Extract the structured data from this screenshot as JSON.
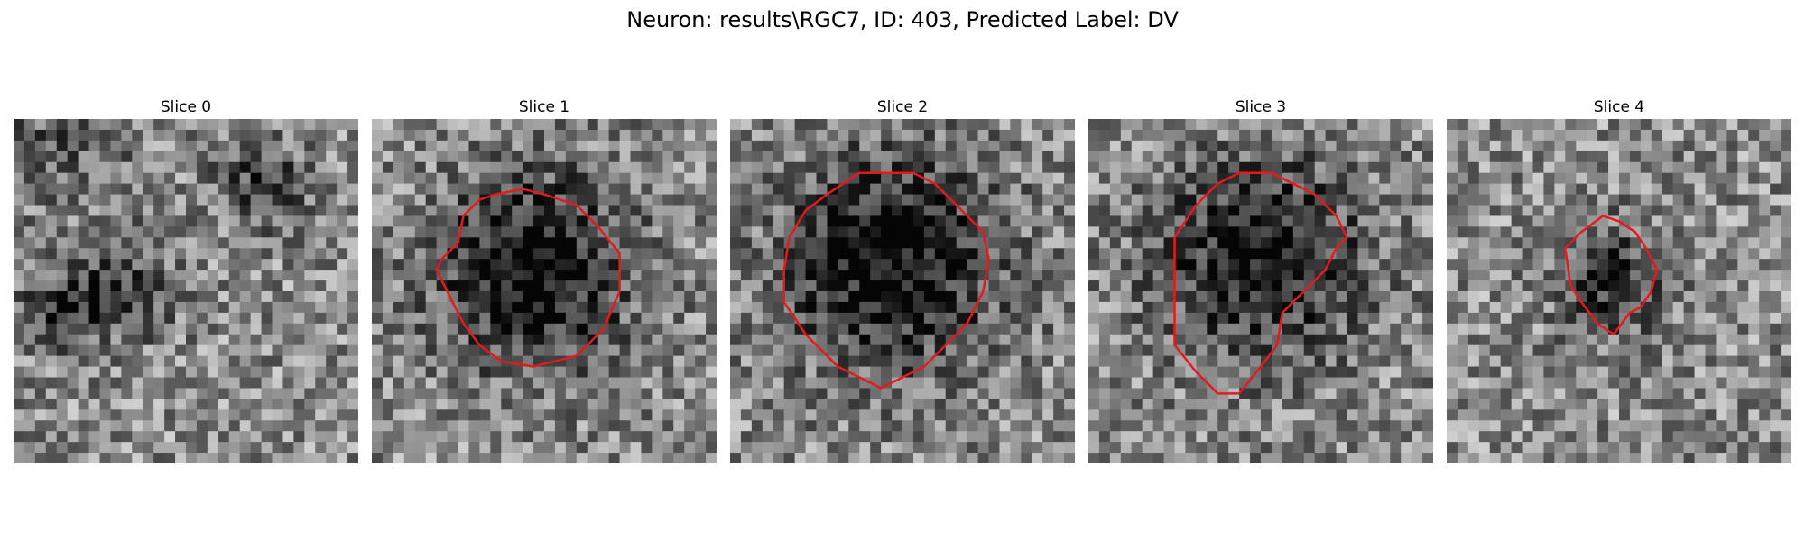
{
  "figure": {
    "title": "Neuron: results\\RGC7, ID: 403, Predicted Label: DV",
    "contour_color": "#e41a1c"
  },
  "panels": [
    {
      "title": "Slice 0",
      "seed": 11,
      "has_contour": false
    },
    {
      "title": "Slice 1",
      "seed": 23,
      "has_contour": true
    },
    {
      "title": "Slice 2",
      "seed": 37,
      "has_contour": true
    },
    {
      "title": "Slice 3",
      "seed": 41,
      "has_contour": true
    },
    {
      "title": "Slice 4",
      "seed": 59,
      "has_contour": true
    }
  ]
}
